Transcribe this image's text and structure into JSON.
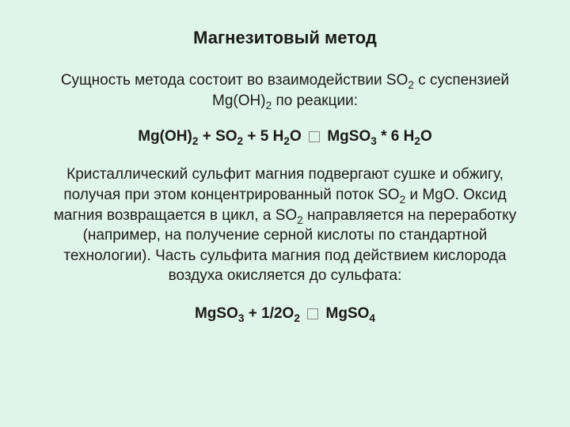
{
  "title": "Магнезитовый метод",
  "intro_part1": "Сущность метода состоит во взаимодействии SO",
  "intro_sub1": "2",
  "intro_part2": " с суспензией Mg(OH)",
  "intro_sub2": "2",
  "intro_part3": " по реакции:",
  "eq1_part1": "Mg(OH)",
  "eq1_sub1": "2",
  "eq1_part2": " + SO",
  "eq1_sub2": "2",
  "eq1_part3": " + 5 H",
  "eq1_sub3": "2",
  "eq1_part4": "O  ",
  "eq1_part5": "   MgSO",
  "eq1_sub4": "3",
  "eq1_part6": " *  6 H",
  "eq1_sub5": "2",
  "eq1_part7": "O",
  "body_p1": "Кристаллический сульфит магния подвергают сушке и обжигу, получая при этом концентрированный поток SO",
  "body_sub1": "2",
  "body_p2": " и MgO. Оксид магния возвращается в  цикл, а SO",
  "body_sub2": "2",
  "body_p3": " направляется на переработку  (например, на получение серной кислоты по стандартной технологии). Часть сульфита магния под действием кислорода воздуха окисляется до сульфата:",
  "eq2_part1": "MgSO",
  "eq2_sub1": "3",
  "eq2_part2": " + 1/2O",
  "eq2_sub2": "2",
  "eq2_part3": "    ",
  "eq2_part4": "   MgSO",
  "eq2_sub3": "4",
  "colors": {
    "background": "#e0f5e9",
    "text": "#1a1a1a"
  },
  "typography": {
    "title_fontsize": 22,
    "body_fontsize": 19,
    "font_family": "Arial"
  }
}
